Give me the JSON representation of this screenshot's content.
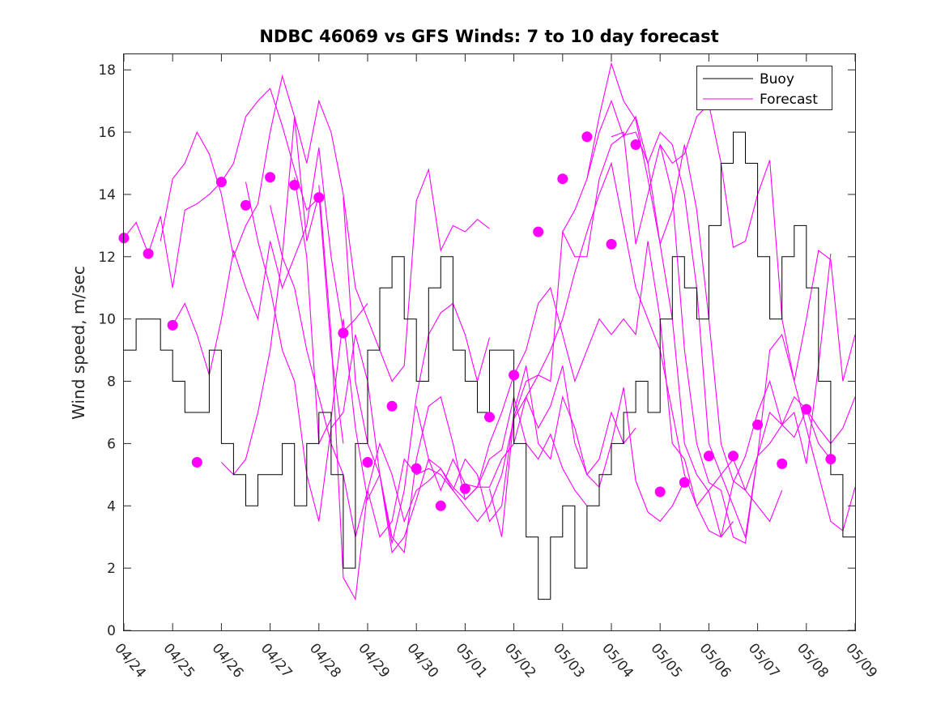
{
  "chart_data": {
    "type": "line",
    "title": "NDBC 46069 vs GFS Winds: 7 to 10 day forecast",
    "xlabel": "",
    "ylabel": "Wind speed, m/sec",
    "xlim": [
      0,
      15
    ],
    "ylim": [
      0,
      18.5
    ],
    "x_tick_values": [
      0,
      1,
      2,
      3,
      4,
      5,
      6,
      7,
      8,
      9,
      10,
      11,
      12,
      13,
      14,
      15
    ],
    "x_tick_labels": [
      "04/24",
      "04/25",
      "04/26",
      "04/27",
      "04/28",
      "04/29",
      "04/30",
      "05/01",
      "05/02",
      "05/03",
      "05/04",
      "05/05",
      "05/06",
      "05/07",
      "05/08",
      "05/09"
    ],
    "y_tick_values": [
      0,
      2,
      4,
      6,
      8,
      10,
      12,
      14,
      16,
      18
    ],
    "y_tick_labels": [
      "0",
      "2",
      "4",
      "6",
      "8",
      "10",
      "12",
      "14",
      "16",
      "18"
    ],
    "grid": false,
    "legend": {
      "placement": "top-right",
      "entries": [
        "Buoy",
        "Forecast"
      ]
    },
    "colors": {
      "buoy": "#000000",
      "forecast": "#ff00ff"
    },
    "series": [
      {
        "name": "Buoy",
        "x": [
          0,
          0.25,
          0.5,
          0.75,
          1.0,
          1.25,
          1.5,
          1.75,
          2.0,
          2.25,
          2.5,
          2.75,
          3.0,
          3.25,
          3.5,
          3.75,
          4.0,
          4.25,
          4.5,
          4.75,
          5.0,
          5.25,
          5.5,
          5.75,
          6.0,
          6.25,
          6.5,
          6.75,
          7.0,
          7.25,
          7.5,
          7.75,
          8.0,
          8.25,
          8.5,
          8.75,
          9.0,
          9.25,
          9.5,
          9.75,
          10.0,
          10.25,
          10.5,
          10.75,
          11.0,
          11.25,
          11.5,
          11.75,
          12.0,
          12.25,
          12.5,
          12.75,
          13.0,
          13.25,
          13.5,
          13.75,
          14.0,
          14.25,
          14.5,
          14.75
        ],
        "values": [
          9,
          10,
          10,
          9,
          8,
          7,
          7,
          9,
          6,
          5,
          4,
          5,
          5,
          6,
          4,
          6,
          7,
          5,
          2,
          6,
          9,
          11,
          12,
          10,
          8,
          11,
          12,
          9,
          8,
          7,
          9,
          9,
          6,
          3,
          1,
          3,
          4,
          2,
          4,
          5,
          6,
          7,
          8,
          7,
          10,
          12,
          11,
          10,
          13,
          15,
          16,
          15,
          12,
          10,
          12,
          13,
          11,
          8,
          5,
          3
        ]
      },
      {
        "name": "Forecast",
        "markers": {
          "x": [
            0,
            0.5,
            1.0,
            1.5,
            2.0,
            2.5,
            3.0,
            3.5,
            4.0,
            4.5,
            5.0,
            5.5,
            6.0,
            6.5,
            7.0,
            7.5,
            8.0,
            8.5,
            9.0,
            9.5,
            10.0,
            10.5,
            11.0,
            11.5,
            12.0,
            12.5,
            13.0,
            13.5,
            14.0,
            14.5
          ],
          "values": [
            12.6,
            12.1,
            9.8,
            5.4,
            14.4,
            13.65,
            14.55,
            14.3,
            13.9,
            9.55,
            5.4,
            7.2,
            5.2,
            4.0,
            4.55,
            6.85,
            8.2,
            12.8,
            14.5,
            15.85,
            12.4,
            15.6,
            4.45,
            4.75,
            5.6,
            5.6,
            6.6,
            5.35,
            7.1,
            5.5
          ]
        },
        "runs": [
          {
            "x": [
              0,
              0.25,
              0.5,
              0.75,
              1.0,
              1.25,
              1.5,
              1.75,
              2.0,
              2.25,
              2.5,
              2.75,
              3.0,
              3.25,
              3.5,
              3.75,
              4.0
            ],
            "values": [
              12.6,
              13.1,
              12.1,
              13.3,
              11.0,
              13.5,
              13.7,
              14.0,
              14.4,
              15.0,
              16.5,
              17.0,
              17.4,
              16.2,
              14.8,
              13.5,
              13.9
            ]
          },
          {
            "x": [
              0.75,
              1.0,
              1.25,
              1.5,
              1.75,
              2.0,
              2.25,
              2.5,
              2.75,
              3.0,
              3.25,
              3.5,
              3.75,
              4.0,
              4.25,
              4.5
            ],
            "values": [
              12.5,
              14.5,
              15.0,
              16.0,
              15.3,
              14.0,
              12.0,
              13.0,
              13.7,
              16.0,
              17.8,
              16.5,
              12.5,
              14.0,
              9.0,
              6.0
            ]
          },
          {
            "x": [
              1.0,
              1.25,
              1.5,
              1.75,
              2.0,
              2.25,
              2.5,
              2.75,
              3.0,
              3.25,
              3.5,
              3.75,
              4.0,
              4.25,
              4.5,
              4.75,
              5.0
            ],
            "values": [
              9.8,
              10.5,
              9.5,
              8.2,
              10.0,
              12.2,
              11.0,
              10.0,
              12.5,
              11.0,
              12.0,
              13.0,
              15.5,
              12.0,
              9.6,
              10.0,
              10.5
            ]
          },
          {
            "x": [
              2.0,
              2.25,
              2.5,
              2.75,
              3.0,
              3.25,
              3.5,
              3.75,
              4.0,
              4.25,
              4.5,
              4.75,
              5.0,
              5.25,
              5.5,
              5.75,
              6.0,
              6.25,
              6.5,
              6.75,
              7.0,
              7.25,
              7.5
            ],
            "values": [
              5.4,
              5.0,
              5.5,
              7.0,
              9.0,
              12.0,
              16.5,
              15.0,
              17.0,
              16.0,
              14.0,
              11.0,
              10.0,
              9.0,
              8.0,
              8.5,
              13.8,
              14.8,
              12.2,
              13.0,
              12.8,
              13.2,
              12.9
            ]
          },
          {
            "x": [
              2.5,
              2.75,
              3.0,
              3.25,
              3.5,
              3.75,
              4.0,
              4.25,
              4.5,
              4.75,
              5.0,
              5.25,
              5.5,
              5.75,
              6.0,
              6.25,
              6.5,
              6.75,
              7.0,
              7.25,
              7.5
            ],
            "values": [
              14.4,
              12.5,
              11.0,
              9.0,
              8.0,
              5.0,
              3.5,
              6.5,
              7.0,
              9.5,
              8.0,
              5.0,
              2.8,
              4.5,
              7.5,
              9.5,
              10.2,
              10.5,
              9.5,
              8.0,
              9.4
            ]
          },
          {
            "x": [
              3.0,
              3.25,
              3.5,
              3.75,
              4.0,
              4.25,
              4.5,
              4.75,
              5.0,
              5.25,
              5.5,
              5.75,
              6.0,
              6.25,
              6.5,
              6.75,
              7.0,
              7.25,
              7.5,
              7.75,
              8.0,
              8.25,
              8.5,
              8.75,
              9.0,
              9.25,
              9.5
            ],
            "values": [
              13.65,
              12.0,
              11.0,
              9.0,
              7.5,
              6.0,
              5.0,
              3.0,
              4.5,
              6.0,
              5.0,
              3.5,
              4.5,
              4.8,
              5.2,
              4.6,
              4.2,
              4.6,
              5.5,
              5.8,
              7.5,
              6.0,
              5.5,
              6.3,
              5.2,
              4.5,
              4.0
            ]
          },
          {
            "x": [
              3.5,
              3.75,
              4.0,
              4.25,
              4.5,
              4.75,
              5.0,
              5.25,
              5.5,
              5.75,
              6.0,
              6.25,
              6.5,
              6.75,
              7.0,
              7.25,
              7.5,
              7.75,
              8.0,
              8.25,
              8.5,
              8.75,
              9.0,
              9.25,
              9.5,
              9.75,
              10.0,
              10.25,
              10.5
            ],
            "values": [
              14.55,
              12.0,
              6.0,
              6.8,
              10.0,
              6.5,
              4.2,
              5.0,
              2.5,
              3.0,
              4.2,
              5.5,
              4.5,
              5.5,
              4.7,
              4.6,
              4.6,
              5.5,
              6.0,
              7.5,
              6.5,
              7.2,
              8.5,
              6.0,
              5.0,
              5.5,
              7.0,
              6.0,
              6.5
            ]
          },
          {
            "x": [
              4.0,
              4.25,
              4.5,
              4.75,
              5.0,
              5.25,
              5.5,
              5.75,
              6.0,
              6.25,
              6.5,
              6.75,
              7.0,
              7.25,
              7.5,
              7.75,
              8.0,
              8.25,
              8.5,
              8.75,
              9.0,
              9.25,
              9.5,
              9.75,
              10.0,
              10.25,
              10.5,
              10.75,
              11.0,
              11.25,
              11.5
            ],
            "values": [
              14.3,
              9.5,
              1.7,
              1.0,
              4.5,
              3.0,
              3.5,
              5.5,
              5.0,
              5.2,
              5.0,
              4.5,
              5.5,
              5.0,
              3.5,
              4.0,
              7.0,
              8.5,
              6.0,
              5.5,
              7.5,
              6.5,
              5.0,
              4.6,
              6.0,
              7.8,
              4.8,
              3.8,
              3.5,
              4.0,
              4.8
            ]
          },
          {
            "x": [
              4.5,
              4.75,
              5.0,
              5.25,
              5.5,
              5.75,
              6.0,
              6.25,
              6.5,
              6.75,
              7.0,
              7.25,
              7.5,
              7.75,
              8.0,
              8.25,
              8.5,
              8.75,
              9.0,
              9.25,
              9.5,
              9.75,
              10.0,
              10.25,
              10.5,
              10.75,
              11.0,
              11.25,
              11.5,
              11.75,
              12.0,
              12.25,
              12.5
            ],
            "values": [
              13.9,
              8.0,
              6.0,
              5.0,
              3.0,
              2.5,
              5.5,
              7.2,
              7.5,
              6.0,
              4.2,
              4.6,
              6.0,
              7.0,
              8.2,
              9.0,
              10.5,
              11.0,
              9.5,
              8.0,
              9.0,
              10.0,
              9.5,
              10.0,
              9.5,
              12.5,
              10.0,
              6.0,
              5.5,
              4.0,
              3.2,
              3.0,
              3.5
            ]
          },
          {
            "x": [
              6.0,
              6.25,
              6.5,
              6.75,
              7.0,
              7.25,
              7.5,
              7.75,
              8.0,
              8.25,
              8.5,
              8.75,
              9.0,
              9.25,
              9.5,
              9.75,
              10.0,
              10.25,
              10.5,
              10.75,
              11.0,
              11.25,
              11.5,
              11.75,
              12.0,
              12.25,
              12.5,
              12.75,
              13.0,
              13.25,
              13.5
            ],
            "values": [
              7.2,
              5.5,
              5.2,
              4.5,
              4.0,
              3.5,
              4.0,
              5.0,
              6.8,
              7.5,
              8.2,
              9.0,
              10.0,
              11.5,
              12.8,
              14.0,
              15.0,
              13.0,
              11.0,
              10.0,
              9.0,
              7.0,
              5.0,
              4.0,
              4.5,
              5.0,
              5.5,
              4.5,
              4.0,
              3.5,
              4.5
            ]
          },
          {
            "x": [
              7.5,
              7.75,
              8.0,
              8.25,
              8.5,
              8.75,
              9.0,
              9.25,
              9.5,
              9.75,
              10.0,
              10.25,
              10.5,
              10.75,
              11.0,
              11.25,
              11.5,
              11.75,
              12.0,
              12.25,
              12.5,
              12.75,
              13.0,
              13.25,
              13.5,
              13.75,
              14.0,
              14.25,
              14.5
            ],
            "values": [
              4.55,
              3.0,
              6.85,
              8.0,
              8.2,
              8.0,
              12.8,
              12.0,
              12.0,
              14.5,
              15.6,
              15.9,
              16.0,
              15.0,
              12.4,
              10.0,
              6.0,
              5.0,
              4.45,
              3.0,
              4.75,
              5.6,
              7.0,
              8.0,
              6.6,
              6.2,
              7.1,
              6.0,
              5.5
            ]
          },
          {
            "x": [
              9.0,
              9.25,
              9.5,
              9.75,
              10.0,
              10.25,
              10.5,
              10.75,
              11.0,
              11.25,
              11.5,
              11.75,
              12.0,
              12.25,
              12.5,
              12.75,
              13.0,
              13.25,
              13.5,
              13.75,
              14.0,
              14.25,
              14.5,
              14.75,
              15.0
            ],
            "values": [
              12.8,
              13.5,
              14.5,
              16.0,
              17.0,
              15.85,
              16.5,
              15.0,
              16.0,
              15.6,
              14.0,
              11.0,
              6.0,
              5.0,
              4.0,
              3.0,
              5.6,
              7.0,
              6.6,
              7.5,
              7.1,
              6.5,
              6.0,
              6.5,
              7.5
            ]
          },
          {
            "x": [
              9.5,
              9.75,
              10.0,
              10.25,
              10.5,
              10.75,
              11.0,
              11.25,
              11.5,
              11.75,
              12.0,
              12.25,
              12.5,
              12.75,
              13.0,
              13.25,
              13.5,
              13.75,
              14.0,
              14.25,
              14.5,
              14.75,
              15.0
            ],
            "values": [
              14.5,
              16.5,
              18.2,
              17.0,
              16.4,
              14.5,
              12.4,
              13.5,
              15.6,
              13.5,
              10.0,
              6.0,
              4.8,
              4.5,
              5.6,
              9.0,
              9.5,
              8.0,
              6.5,
              5.0,
              3.5,
              3.2,
              4.6
            ]
          },
          {
            "x": [
              10.0,
              10.25,
              10.5,
              10.75,
              11.0,
              11.25,
              11.5,
              11.75,
              12.0,
              12.25,
              12.5,
              12.75,
              13.0,
              13.25,
              13.5,
              13.75,
              14.0,
              14.25,
              14.5,
              14.75,
              15.0
            ],
            "values": [
              15.85,
              16.0,
              12.4,
              14.0,
              15.6,
              15.0,
              15.3,
              16.5,
              16.9,
              15.0,
              12.3,
              12.5,
              14.0,
              15.1,
              10.0,
              8.0,
              10.0,
              12.2,
              11.9,
              8.0,
              9.5
            ]
          },
          {
            "x": [
              11.0,
              11.25,
              11.5,
              11.75,
              12.0,
              12.25,
              12.5,
              12.75,
              13.0,
              13.25,
              13.5,
              13.75,
              14.0,
              14.25,
              14.5
            ],
            "values": [
              15.6,
              14.0,
              9.0,
              6.0,
              4.75,
              4.5,
              3.0,
              2.8,
              5.6,
              6.0,
              6.6,
              7.0,
              5.35,
              8.5,
              12.1
            ]
          }
        ]
      }
    ]
  }
}
